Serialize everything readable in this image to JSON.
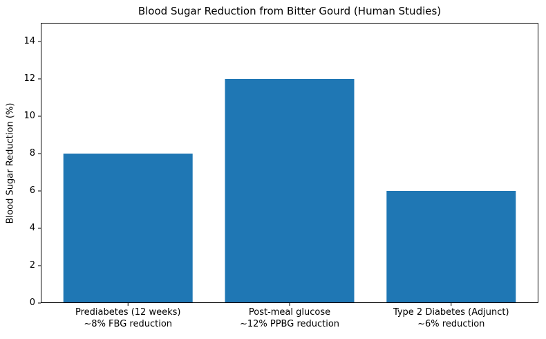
{
  "chart_data": {
    "type": "bar",
    "title": "Blood Sugar Reduction from Bitter Gourd (Human Studies)",
    "xlabel": "",
    "ylabel": "Blood Sugar Reduction (%)",
    "categories": [
      "Prediabetes (12 weeks)\n~8% FBG reduction",
      "Post-meal glucose\n~12% PPBG reduction",
      "Type 2 Diabetes (Adjunct)\n~6% reduction"
    ],
    "values": [
      8,
      12,
      6
    ],
    "yticks": [
      0,
      2,
      4,
      6,
      8,
      10,
      12,
      14
    ],
    "ylim": [
      0,
      15
    ],
    "bar_color": "#1f77b4",
    "bar_width": 0.8,
    "axis_color": "#000000",
    "grid": false,
    "legend_position": "none"
  }
}
